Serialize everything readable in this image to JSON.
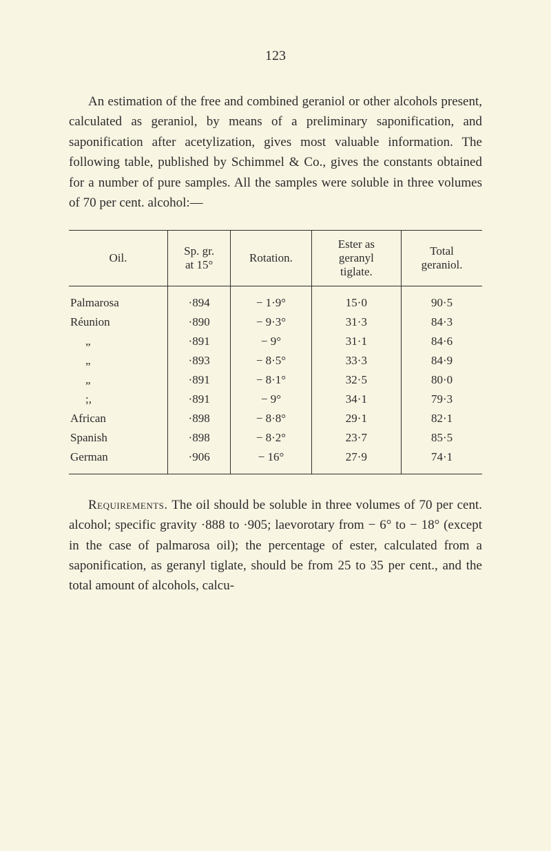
{
  "page_number": "123",
  "paragraph_text": "An estimation of the free and combined geraniol or other alcohols present, calculated as geraniol, by means of a preliminary saponification, and saponification after acetylization, gives most valuable information. The following table, published by Schimmel & Co., gives the constants obtained for a number of pure samples. All the samples were soluble in three volumes of 70 per cent. alcohol:—",
  "table": {
    "headers": {
      "oil": "Oil.",
      "sp_gr": "Sp. gr.\nat 15°",
      "rotation": "Rotation.",
      "ester": "Ester as\ngeranyl\ntiglate.",
      "total": "Total\ngeraniol."
    },
    "rows": [
      {
        "oil": "Palmarosa",
        "sp_gr": "·894",
        "rotation": "− 1·9°",
        "ester": "15·0",
        "total": "90·5"
      },
      {
        "oil": "Réunion",
        "sp_gr": "·890",
        "rotation": "− 9·3°",
        "ester": "31·3",
        "total": "84·3"
      },
      {
        "oil": "ditto1",
        "sp_gr": "·891",
        "rotation": "− 9°",
        "ester": "31·1",
        "total": "84·6"
      },
      {
        "oil": "ditto1",
        "sp_gr": "·893",
        "rotation": "− 8·5°",
        "ester": "33·3",
        "total": "84·9"
      },
      {
        "oil": "ditto1",
        "sp_gr": "·891",
        "rotation": "− 8·1°",
        "ester": "32·5",
        "total": "80·0"
      },
      {
        "oil": "ditto2",
        "sp_gr": "·891",
        "rotation": "− 9°",
        "ester": "34·1",
        "total": "79·3"
      },
      {
        "oil": "African",
        "sp_gr": "·898",
        "rotation": "− 8·8°",
        "ester": "29·1",
        "total": "82·1"
      },
      {
        "oil": "Spanish",
        "sp_gr": "·898",
        "rotation": "− 8·2°",
        "ester": "23·7",
        "total": "85·5"
      },
      {
        "oil": "German",
        "sp_gr": "·906",
        "rotation": "− 16°",
        "ester": "27·9",
        "total": "74·1"
      }
    ]
  },
  "requirements_label": "Requirements.",
  "requirements_text": " The oil should be soluble in three volumes of 70 per cent. alcohol; specific gravity ·888 to ·905; laevorotary from − 6° to − 18° (except in the case of palmarosa oil); the percentage of ester, calculated from a saponification, as geranyl tiglate, should be from 25 to 35 per cent., and the total amount of alcohols, calcu-",
  "ditto_mark1": "„",
  "ditto_mark2": ";,"
}
